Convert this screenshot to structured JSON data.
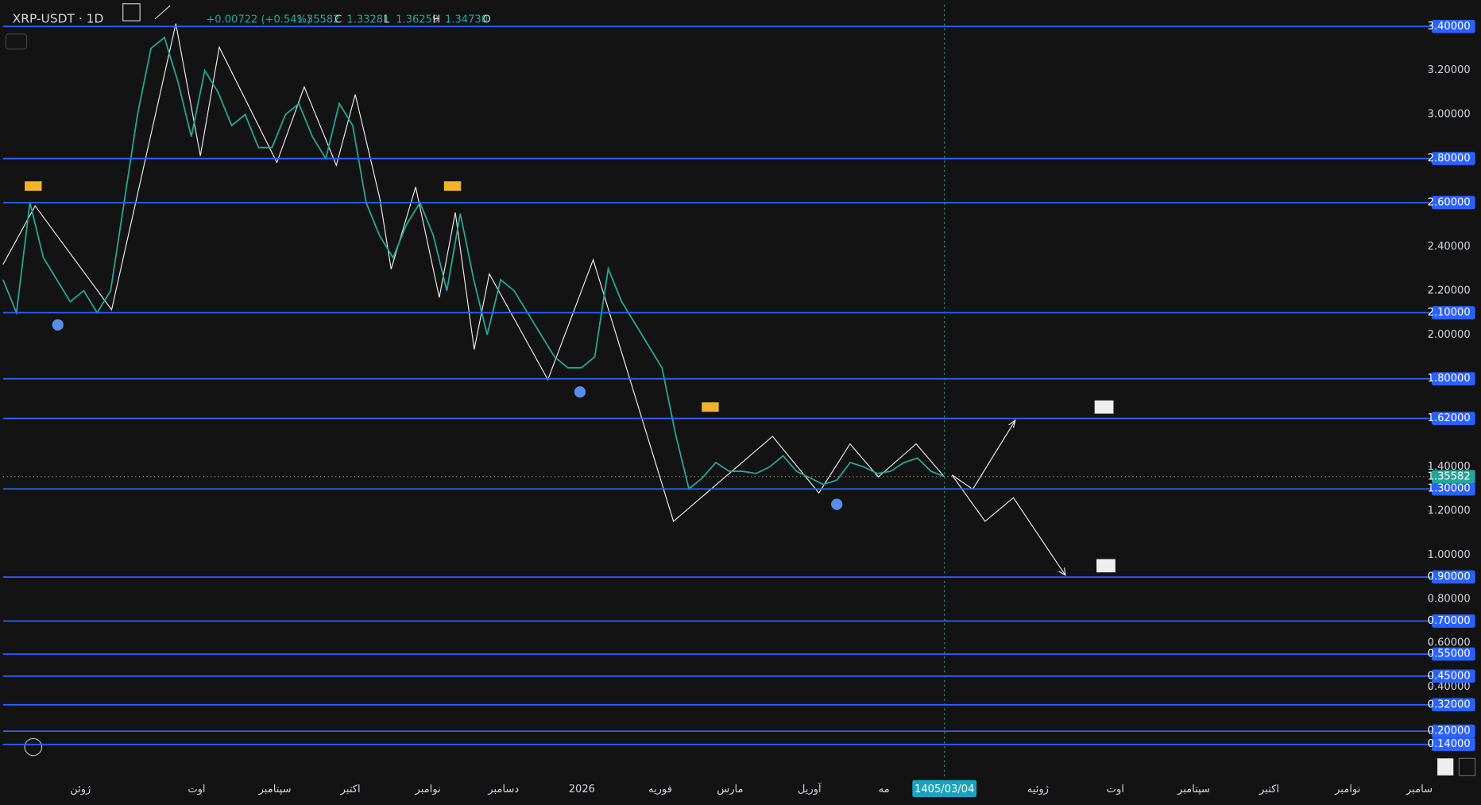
{
  "header": {
    "symbol": "XRP-USDT · 1D",
    "change": "+0.00722 (+0.54%)",
    "close": "1.35582",
    "close_key": "C",
    "low": "1.33281",
    "low_key": "L",
    "high": "1.36259",
    "high_key": "H",
    "open": "1.34730",
    "open_key": "O"
  },
  "chart_data": {
    "type": "candlestick-path",
    "ylim": [
      0.02,
      3.4
    ],
    "yticks": [
      {
        "value": 3.2,
        "label": "3.20000"
      },
      {
        "value": 3.0,
        "label": "3.00000"
      },
      {
        "value": 2.4,
        "label": "2.40000"
      },
      {
        "value": 2.2,
        "label": "2.20000"
      },
      {
        "value": 2.0,
        "label": "2.00000"
      },
      {
        "value": 1.4,
        "label": "1.40000"
      },
      {
        "value": 1.2,
        "label": "1.20000"
      },
      {
        "value": 1.0,
        "label": "1.00000"
      },
      {
        "value": 0.8,
        "label": "0.80000"
      },
      {
        "value": 0.6,
        "label": "0.60000"
      },
      {
        "value": 0.4,
        "label": "0.40000"
      }
    ],
    "levels": [
      {
        "value": 3.4,
        "label": "3.40000"
      },
      {
        "value": 2.8,
        "label": "2.80000"
      },
      {
        "value": 2.6,
        "label": "2.60000"
      },
      {
        "value": 2.1,
        "label": "2.10000"
      },
      {
        "value": 1.8,
        "label": "1.80000"
      },
      {
        "value": 1.62,
        "label": "1.62000"
      },
      {
        "value": 1.3,
        "label": "1.30000"
      },
      {
        "value": 0.9,
        "label": "0.90000"
      },
      {
        "value": 0.7,
        "label": "0.70000"
      },
      {
        "value": 0.55,
        "label": "0.55000"
      },
      {
        "value": 0.45,
        "label": "0.45000"
      },
      {
        "value": 0.32,
        "label": "0.32000"
      },
      {
        "value": 0.2,
        "label": "0.20000"
      },
      {
        "value": 0.14,
        "label": "0.14000"
      }
    ],
    "level_color": "#2962ff",
    "current_price": {
      "value": 1.35582,
      "label": "1.35582"
    },
    "categories": [
      "ژوئن",
      "اوت",
      "سپتامبر",
      "اکتبر",
      "نوامبر",
      "دسامبر",
      "2026",
      "فوریه",
      "مارس",
      "آوریل",
      "مه",
      "1405/03/04",
      "ژوئیه",
      "اوت",
      "سپتامبر",
      "اکتبر",
      "نوامبر",
      "سامبر"
    ],
    "price_path": [
      2.25,
      2.1,
      2.6,
      2.35,
      2.25,
      2.15,
      2.2,
      2.1,
      2.2,
      2.6,
      3.0,
      3.3,
      3.35,
      3.15,
      2.9,
      3.2,
      3.1,
      2.95,
      3.0,
      2.85,
      2.85,
      3.0,
      3.05,
      2.9,
      2.8,
      3.05,
      2.95,
      2.6,
      2.45,
      2.35,
      2.5,
      2.6,
      2.45,
      2.2,
      2.55,
      2.25,
      2.0,
      2.25,
      2.2,
      2.1,
      2.0,
      1.9,
      1.85,
      1.85,
      1.9,
      2.3,
      2.15,
      2.05,
      1.95,
      1.85,
      1.55,
      1.3,
      1.35,
      1.42,
      1.38,
      1.38,
      1.37,
      1.4,
      1.45,
      1.38,
      1.35,
      1.32,
      1.34,
      1.42,
      1.4,
      1.37,
      1.38,
      1.42,
      1.44,
      1.38,
      1.356
    ],
    "path_color": "#26a69a"
  }
}
